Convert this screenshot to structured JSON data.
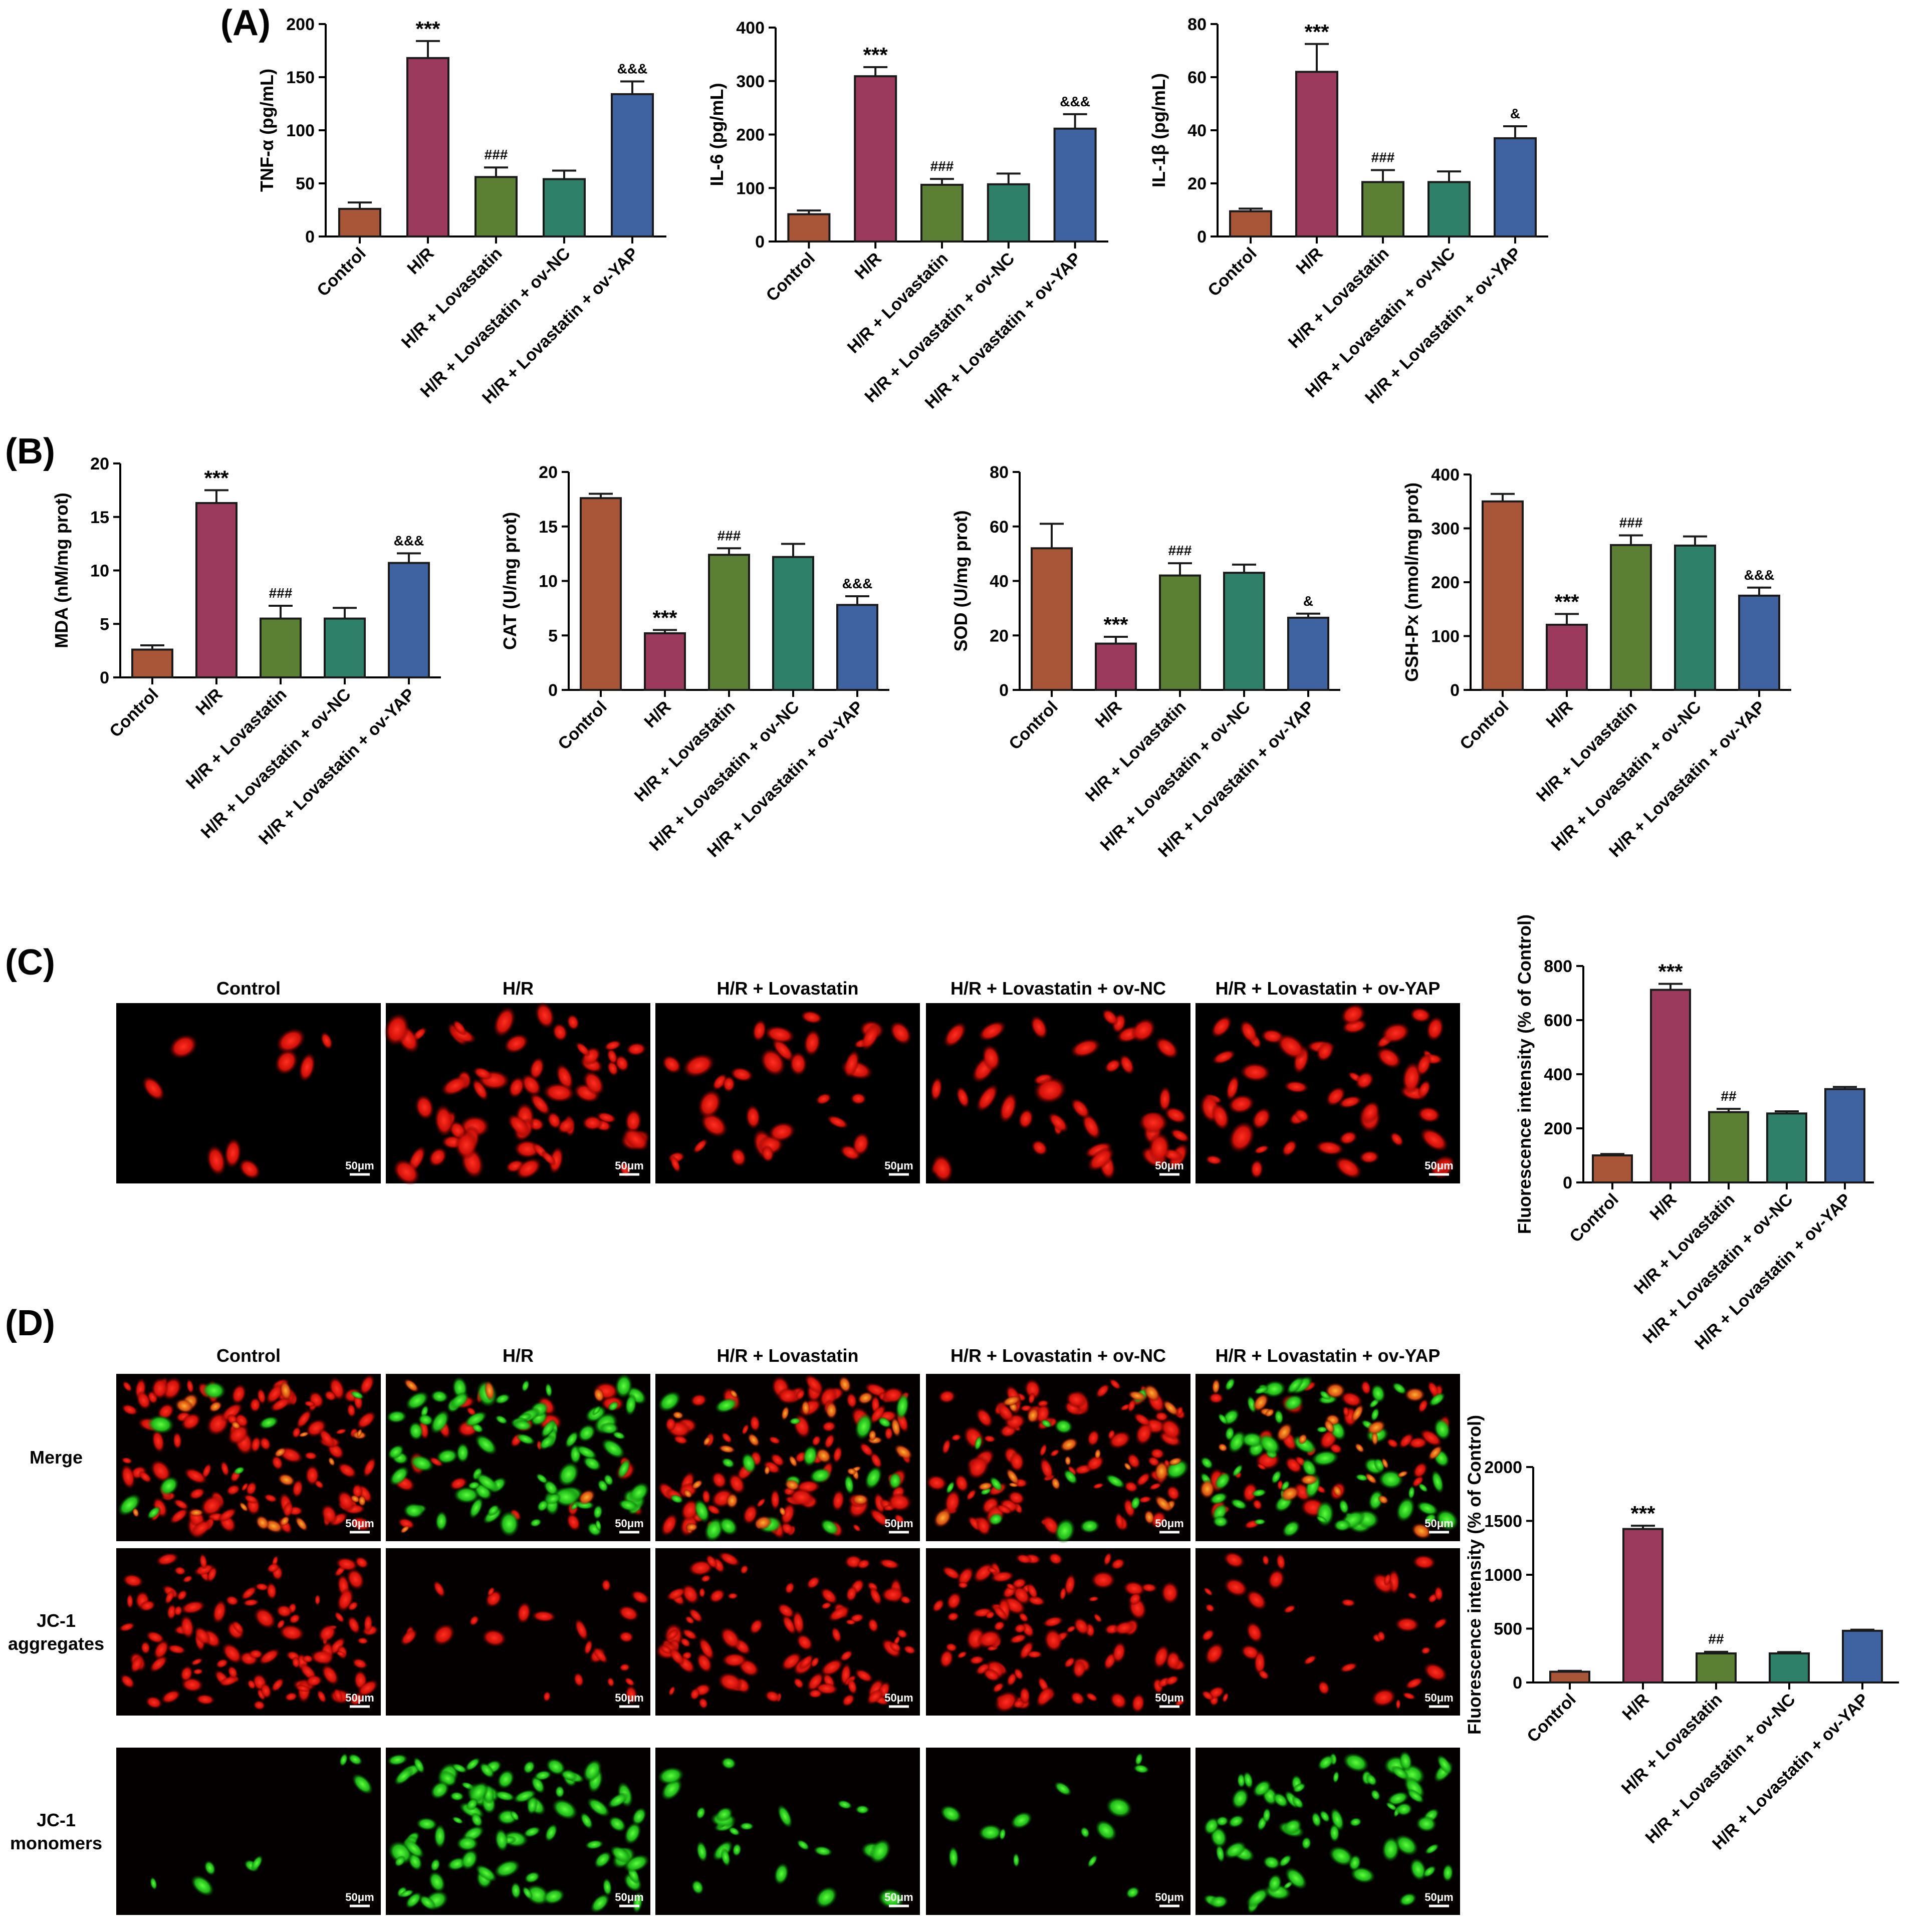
{
  "panel_labels": {
    "A": "(A)",
    "B": "(B)",
    "C": "(C)",
    "D": "(D)"
  },
  "colors": {
    "Control": "#a85538",
    "H/R": "#9b3a5c",
    "H/R + Lovastatin": "#5b7f33",
    "H/R + Lovastatin + ov-NC": "#2f8068",
    "H/R + Lovastatin + ov-YAP": "#3f62a0"
  },
  "groups": [
    "Control",
    "H/R",
    "H/R + Lovastatin",
    "H/R + Lovastatin + ov-NC",
    "H/R + Lovastatin + ov-YAP"
  ],
  "image_panels": {
    "C": {
      "column_titles": [
        "Control",
        "H/R",
        "H/R + Lovastatin",
        "H/R + Lovastatin + ov-NC",
        "H/R + Lovastatin + ov-YAP"
      ],
      "scale_bar": "50μm",
      "stain": "red fluorescence"
    },
    "D": {
      "column_titles": [
        "Control",
        "H/R",
        "H/R + Lovastatin",
        "H/R + Lovastatin + ov-NC",
        "H/R + Lovastatin + ov-YAP"
      ],
      "row_labels": [
        [
          "Merge"
        ],
        [
          "JC-1",
          "aggregates"
        ],
        [
          "JC-1",
          "monomers"
        ]
      ],
      "scale_bar": "50μm"
    }
  },
  "chart_data": [
    {
      "id": "tnf",
      "panel": "A",
      "type": "bar",
      "ylabel": "TNF-α (pg/mL)",
      "ylim": [
        0,
        200
      ],
      "yticks": [
        0,
        50,
        100,
        150,
        200
      ],
      "categories": [
        "Control",
        "H/R",
        "H/R + Lovastatin",
        "H/R + Lovastatin + ov-NC",
        "H/R + Lovastatin + ov-YAP"
      ],
      "values": [
        26,
        168,
        56,
        54,
        134
      ],
      "errors": [
        6,
        16,
        9,
        8,
        12
      ],
      "annotations": [
        "",
        "***",
        "###",
        "",
        "&&&"
      ]
    },
    {
      "id": "il6",
      "panel": "A",
      "type": "bar",
      "ylabel": "IL-6 (pg/mL)",
      "ylim": [
        0,
        400
      ],
      "yticks": [
        0,
        100,
        200,
        300,
        400
      ],
      "categories": [
        "Control",
        "H/R",
        "H/R + Lovastatin",
        "H/R + Lovastatin + ov-NC",
        "H/R + Lovastatin + ov-YAP"
      ],
      "values": [
        51,
        309,
        106,
        107,
        211
      ],
      "errors": [
        7,
        17,
        11,
        20,
        27
      ],
      "annotations": [
        "",
        "***",
        "###",
        "",
        "&&&"
      ]
    },
    {
      "id": "il1b",
      "panel": "A",
      "type": "bar",
      "ylabel": "IL-1β (pg/mL)",
      "ylim": [
        0,
        80
      ],
      "yticks": [
        0,
        20,
        40,
        60,
        80
      ],
      "categories": [
        "Control",
        "H/R",
        "H/R + Lovastatin",
        "H/R + Lovastatin + ov-NC",
        "H/R + Lovastatin + ov-YAP"
      ],
      "values": [
        9.5,
        62,
        20.5,
        20.5,
        37
      ],
      "errors": [
        1,
        10.5,
        4.5,
        4,
        4.5
      ],
      "annotations": [
        "",
        "***",
        "###",
        "",
        "&"
      ]
    },
    {
      "id": "mda",
      "panel": "B",
      "type": "bar",
      "ylabel": "MDA (nM/mg prot)",
      "ylim": [
        0,
        20
      ],
      "yticks": [
        0,
        5,
        10,
        15,
        20
      ],
      "categories": [
        "Control",
        "H/R",
        "H/R + Lovastatin",
        "H/R + Lovastatin + ov-NC",
        "H/R + Lovastatin + ov-YAP"
      ],
      "values": [
        2.6,
        16.3,
        5.5,
        5.5,
        10.7
      ],
      "errors": [
        0.4,
        1.2,
        1.2,
        1.0,
        0.9
      ],
      "annotations": [
        "",
        "***",
        "###",
        "",
        "&&&"
      ]
    },
    {
      "id": "cat",
      "panel": "B",
      "type": "bar",
      "ylabel": "CAT (U/mg prot)",
      "ylim": [
        0,
        20
      ],
      "yticks": [
        0,
        5,
        10,
        15,
        20
      ],
      "categories": [
        "Control",
        "H/R",
        "H/R + Lovastatin",
        "H/R + Lovastatin + ov-NC",
        "H/R + Lovastatin + ov-YAP"
      ],
      "values": [
        17.6,
        5.2,
        12.4,
        12.2,
        7.8
      ],
      "errors": [
        0.4,
        0.3,
        0.6,
        1.2,
        0.8
      ],
      "annotations": [
        "",
        "***",
        "###",
        "",
        "&&&"
      ]
    },
    {
      "id": "sod",
      "panel": "B",
      "type": "bar",
      "ylabel": "SOD (U/mg prot)",
      "ylim": [
        0,
        80
      ],
      "yticks": [
        0,
        20,
        40,
        60,
        80
      ],
      "categories": [
        "Control",
        "H/R",
        "H/R + Lovastatin",
        "H/R + Lovastatin + ov-NC",
        "H/R + Lovastatin + ov-YAP"
      ],
      "values": [
        52,
        17,
        42,
        43,
        26.5
      ],
      "errors": [
        9,
        2.5,
        4.5,
        3,
        1.5
      ],
      "annotations": [
        "",
        "***",
        "###",
        "",
        "&"
      ]
    },
    {
      "id": "gsh",
      "panel": "B",
      "type": "bar",
      "ylabel": "GSH-Px (nmol/mg prot)",
      "ylim": [
        0,
        400
      ],
      "yticks": [
        0,
        100,
        200,
        300,
        400
      ],
      "categories": [
        "Control",
        "H/R",
        "H/R + Lovastatin",
        "H/R + Lovastatin + ov-NC",
        "H/R + Lovastatin + ov-YAP"
      ],
      "values": [
        350,
        121,
        269,
        268,
        175
      ],
      "errors": [
        14,
        20,
        18,
        17,
        15
      ],
      "annotations": [
        "",
        "***",
        "###",
        "",
        "&&&"
      ]
    },
    {
      "id": "fluoC",
      "panel": "C",
      "type": "bar",
      "ylabel": "Fluorescence intensity (% of Control)",
      "ylim": [
        0,
        800
      ],
      "yticks": [
        0,
        200,
        400,
        600,
        800
      ],
      "categories": [
        "Control",
        "H/R",
        "H/R + Lovastatin",
        "H/R + Lovastatin + ov-NC",
        "H/R + Lovastatin + ov-YAP"
      ],
      "values": [
        100,
        712,
        260,
        255,
        345
      ],
      "errors": [
        5,
        22,
        12,
        8,
        8
      ],
      "annotations": [
        "",
        "***",
        "##",
        "",
        ""
      ]
    },
    {
      "id": "fluoD",
      "panel": "D",
      "type": "bar",
      "ylabel": "Fluorescence intensity (% of Control)",
      "ylim": [
        0,
        2000
      ],
      "yticks": [
        0,
        500,
        1000,
        1500,
        2000
      ],
      "categories": [
        "Control",
        "H/R",
        "H/R + Lovastatin",
        "H/R + Lovastatin + ov-NC",
        "H/R + Lovastatin + ov-YAP"
      ],
      "values": [
        100,
        1425,
        270,
        270,
        480
      ],
      "errors": [
        8,
        30,
        15,
        12,
        10
      ],
      "annotations": [
        "",
        "***",
        "##",
        "",
        ""
      ]
    }
  ]
}
